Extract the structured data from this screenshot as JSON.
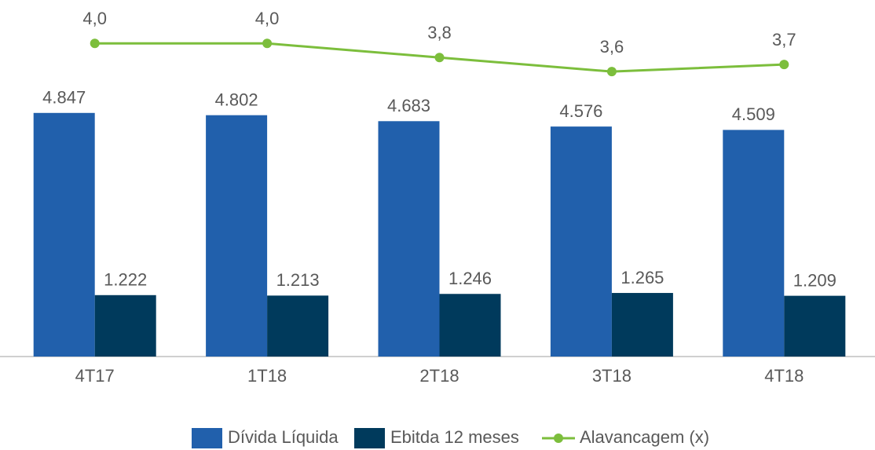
{
  "chart_data": {
    "type": "bar",
    "categories": [
      "4T17",
      "1T18",
      "2T18",
      "3T18",
      "4T18"
    ],
    "series": [
      {
        "name": "Dívida Líquida",
        "color": "#2160ac",
        "values": [
          4847,
          4802,
          4683,
          4576,
          4509
        ],
        "value_labels": [
          "4.847",
          "4.802",
          "4.683",
          "4.576",
          "4.509"
        ]
      },
      {
        "name": "Ebitda 12 meses",
        "color": "#003a5c",
        "values": [
          1222,
          1213,
          1246,
          1265,
          1209
        ],
        "value_labels": [
          "1.222",
          "1.213",
          "1.246",
          "1.265",
          "1.209"
        ]
      },
      {
        "name": "Alavancagem (x)",
        "color": "#7cbe3c",
        "type": "line",
        "axis": "y2",
        "values": [
          4.0,
          4.0,
          3.8,
          3.6,
          3.7
        ],
        "value_labels": [
          "4,0",
          "4,0",
          "3,8",
          "3,6",
          "3,7"
        ]
      }
    ],
    "ylim": [
      0,
      7000
    ],
    "y2lim": [
      -0.45,
      4.55
    ],
    "grid": false,
    "legend": "bottom"
  }
}
